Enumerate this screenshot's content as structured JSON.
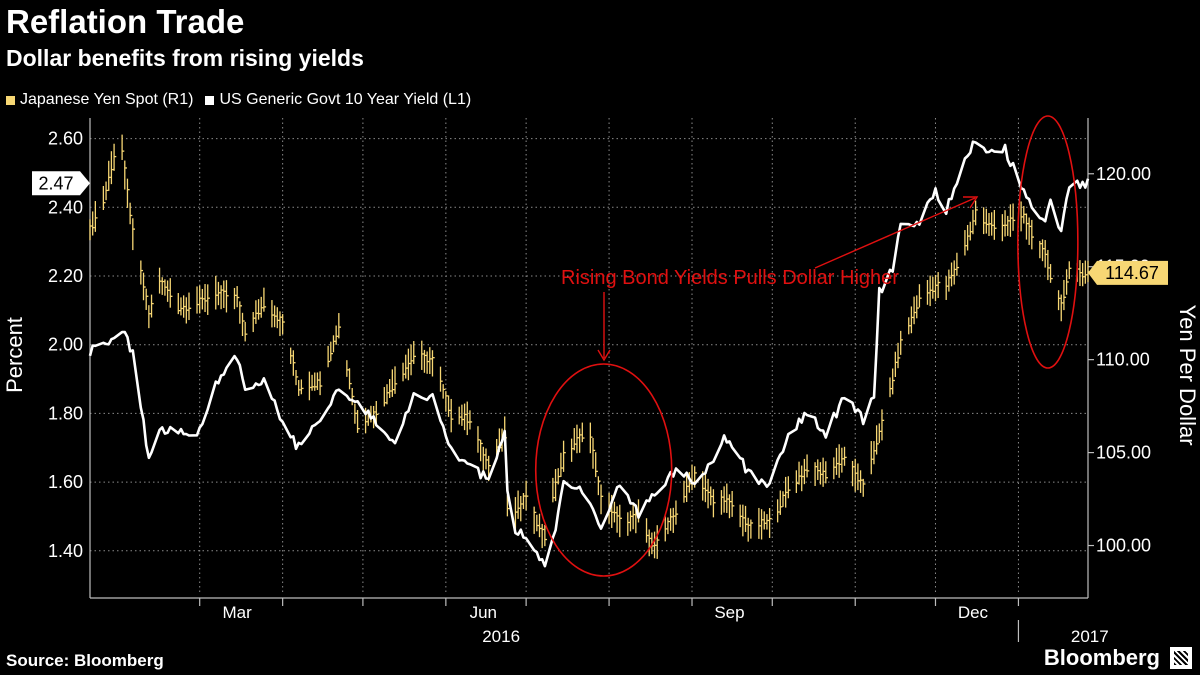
{
  "header": {
    "title": "Reflation Trade",
    "subtitle": "Dollar benefits from rising yields"
  },
  "legend": {
    "items": [
      {
        "label": "Japanese Yen Spot  (R1)",
        "color": "#f7d774"
      },
      {
        "label": "US Generic Govt 10 Year Yield  (L1)",
        "color": "#ffffff"
      }
    ]
  },
  "footer": {
    "source": "Source: Bloomberg",
    "brand": "Bloomberg"
  },
  "chart_data": {
    "type": "line",
    "title": "Reflation Trade",
    "subtitle": "Dollar benefits from rising yields",
    "x_range": [
      "2016-01-20",
      "2017-01-27"
    ],
    "x_ticks": [
      {
        "label": "Mar",
        "date": "2016-03-15"
      },
      {
        "label": "Jun",
        "date": "2016-06-15"
      },
      {
        "label": "Sep",
        "date": "2016-09-15"
      },
      {
        "label": "Dec",
        "date": "2016-12-15"
      }
    ],
    "x_boundaries": [
      "2016-03-01",
      "2016-04-01",
      "2016-05-01",
      "2016-06-01",
      "2016-07-01",
      "2016-08-01",
      "2016-09-01",
      "2016-10-01",
      "2016-11-01",
      "2016-12-01",
      "2017-01-01"
    ],
    "year_labels": [
      {
        "label": "2016",
        "date": "2016-07-01"
      },
      {
        "label": "2017",
        "date": "2017-01-15"
      }
    ],
    "y_left": {
      "label": "Percent",
      "range": [
        1.28,
        2.66
      ],
      "ticks": [
        1.4,
        1.6,
        1.8,
        2.0,
        2.2,
        2.4,
        2.6
      ],
      "tick_labels": [
        "1.40",
        "1.60",
        "1.80",
        "2.00",
        "2.20",
        "2.40",
        "2.60"
      ]
    },
    "y_right": {
      "label": "Yen Per Dollar",
      "range": [
        97.5,
        123.0
      ],
      "ticks": [
        100,
        105,
        110,
        115,
        120
      ],
      "tick_labels": [
        "100.00",
        "105.00",
        "110.00",
        "115.00",
        "120.00"
      ]
    },
    "grid": true,
    "series": [
      {
        "name": "US Generic Govt 10 Year Yield (L1)",
        "axis": "left",
        "color": "#ffffff",
        "style": "line",
        "last_value_label": "2.47",
        "points": [
          [
            "2016-01-20",
            1.98
          ],
          [
            "2016-01-27",
            2.0
          ],
          [
            "2016-02-01",
            2.05
          ],
          [
            "2016-02-05",
            1.97
          ],
          [
            "2016-02-11",
            1.67
          ],
          [
            "2016-02-15",
            1.75
          ],
          [
            "2016-02-22",
            1.75
          ],
          [
            "2016-02-29",
            1.73
          ],
          [
            "2016-03-07",
            1.88
          ],
          [
            "2016-03-15",
            1.97
          ],
          [
            "2016-03-18",
            1.87
          ],
          [
            "2016-03-25",
            1.9
          ],
          [
            "2016-04-01",
            1.77
          ],
          [
            "2016-04-07",
            1.7
          ],
          [
            "2016-04-15",
            1.78
          ],
          [
            "2016-04-22",
            1.88
          ],
          [
            "2016-04-29",
            1.83
          ],
          [
            "2016-05-06",
            1.78
          ],
          [
            "2016-05-13",
            1.7
          ],
          [
            "2016-05-20",
            1.85
          ],
          [
            "2016-05-27",
            1.85
          ],
          [
            "2016-06-03",
            1.7
          ],
          [
            "2016-06-10",
            1.64
          ],
          [
            "2016-06-17",
            1.61
          ],
          [
            "2016-06-23",
            1.74
          ],
          [
            "2016-06-24",
            1.56
          ],
          [
            "2016-06-27",
            1.46
          ],
          [
            "2016-07-01",
            1.44
          ],
          [
            "2016-07-06",
            1.37
          ],
          [
            "2016-07-08",
            1.36
          ],
          [
            "2016-07-11",
            1.43
          ],
          [
            "2016-07-15",
            1.59
          ],
          [
            "2016-07-22",
            1.57
          ],
          [
            "2016-07-29",
            1.46
          ],
          [
            "2016-08-05",
            1.59
          ],
          [
            "2016-08-12",
            1.51
          ],
          [
            "2016-08-19",
            1.58
          ],
          [
            "2016-08-26",
            1.63
          ],
          [
            "2016-09-02",
            1.6
          ],
          [
            "2016-09-09",
            1.67
          ],
          [
            "2016-09-13",
            1.73
          ],
          [
            "2016-09-16",
            1.7
          ],
          [
            "2016-09-23",
            1.62
          ],
          [
            "2016-09-30",
            1.59
          ],
          [
            "2016-10-07",
            1.73
          ],
          [
            "2016-10-14",
            1.8
          ],
          [
            "2016-10-21",
            1.74
          ],
          [
            "2016-10-28",
            1.85
          ],
          [
            "2016-11-04",
            1.78
          ],
          [
            "2016-11-08",
            1.86
          ],
          [
            "2016-11-10",
            2.15
          ],
          [
            "2016-11-15",
            2.22
          ],
          [
            "2016-11-18",
            2.35
          ],
          [
            "2016-11-25",
            2.36
          ],
          [
            "2016-12-01",
            2.45
          ],
          [
            "2016-12-05",
            2.39
          ],
          [
            "2016-12-09",
            2.47
          ],
          [
            "2016-12-14",
            2.57
          ],
          [
            "2016-12-16",
            2.6
          ],
          [
            "2016-12-20",
            2.55
          ],
          [
            "2016-12-27",
            2.57
          ],
          [
            "2017-01-03",
            2.45
          ],
          [
            "2017-01-06",
            2.41
          ],
          [
            "2017-01-11",
            2.36
          ],
          [
            "2017-01-13",
            2.41
          ],
          [
            "2017-01-17",
            2.33
          ],
          [
            "2017-01-20",
            2.47
          ],
          [
            "2017-01-27",
            2.47
          ]
        ]
      },
      {
        "name": "Japanese Yen Spot (R1)",
        "axis": "right",
        "color": "#f7d774",
        "style": "hlc-bars",
        "last_value_label": "114.67",
        "points": [
          [
            "2016-01-20",
            117.0
          ],
          [
            "2016-01-25",
            118.5
          ],
          [
            "2016-01-29",
            121.0
          ],
          [
            "2016-02-01",
            121.2
          ],
          [
            "2016-02-05",
            116.8
          ],
          [
            "2016-02-11",
            112.5
          ],
          [
            "2016-02-15",
            114.3
          ],
          [
            "2016-02-22",
            112.8
          ],
          [
            "2016-02-29",
            113.0
          ],
          [
            "2016-03-07",
            113.6
          ],
          [
            "2016-03-15",
            113.3
          ],
          [
            "2016-03-18",
            111.5
          ],
          [
            "2016-03-25",
            113.0
          ],
          [
            "2016-04-01",
            112.0
          ],
          [
            "2016-04-07",
            108.5
          ],
          [
            "2016-04-15",
            108.8
          ],
          [
            "2016-04-22",
            111.8
          ],
          [
            "2016-04-29",
            106.5
          ],
          [
            "2016-05-06",
            107.2
          ],
          [
            "2016-05-13",
            108.8
          ],
          [
            "2016-05-20",
            110.2
          ],
          [
            "2016-05-27",
            110.0
          ],
          [
            "2016-06-03",
            107.0
          ],
          [
            "2016-06-10",
            106.8
          ],
          [
            "2016-06-17",
            104.2
          ],
          [
            "2016-06-23",
            106.0
          ],
          [
            "2016-06-24",
            102.2
          ],
          [
            "2016-06-27",
            101.8
          ],
          [
            "2016-07-01",
            102.7
          ],
          [
            "2016-07-06",
            100.8
          ],
          [
            "2016-07-08",
            100.5
          ],
          [
            "2016-07-11",
            102.8
          ],
          [
            "2016-07-15",
            104.8
          ],
          [
            "2016-07-22",
            106.0
          ],
          [
            "2016-07-25",
            105.8
          ],
          [
            "2016-07-29",
            102.5
          ],
          [
            "2016-08-05",
            101.3
          ],
          [
            "2016-08-12",
            101.6
          ],
          [
            "2016-08-16",
            100.2
          ],
          [
            "2016-08-19",
            100.2
          ],
          [
            "2016-08-26",
            101.8
          ],
          [
            "2016-09-02",
            103.9
          ],
          [
            "2016-09-09",
            102.3
          ],
          [
            "2016-09-13",
            102.6
          ],
          [
            "2016-09-16",
            102.0
          ],
          [
            "2016-09-23",
            101.0
          ],
          [
            "2016-09-30",
            101.3
          ],
          [
            "2016-10-07",
            103.0
          ],
          [
            "2016-10-14",
            104.2
          ],
          [
            "2016-10-21",
            103.8
          ],
          [
            "2016-10-28",
            104.8
          ],
          [
            "2016-11-04",
            103.1
          ],
          [
            "2016-11-08",
            105.2
          ],
          [
            "2016-11-10",
            106.0
          ],
          [
            "2016-11-15",
            109.0
          ],
          [
            "2016-11-18",
            110.9
          ],
          [
            "2016-11-25",
            113.2
          ],
          [
            "2016-12-01",
            114.0
          ],
          [
            "2016-12-05",
            114.0
          ],
          [
            "2016-12-09",
            115.0
          ],
          [
            "2016-12-14",
            117.0
          ],
          [
            "2016-12-16",
            118.0
          ],
          [
            "2016-12-20",
            117.2
          ],
          [
            "2016-12-27",
            117.3
          ],
          [
            "2017-01-03",
            117.7
          ],
          [
            "2017-01-06",
            116.8
          ],
          [
            "2017-01-11",
            115.5
          ],
          [
            "2017-01-13",
            114.5
          ],
          [
            "2017-01-17",
            113.0
          ],
          [
            "2017-01-20",
            114.7
          ],
          [
            "2017-01-27",
            114.67
          ]
        ]
      }
    ],
    "annotations": [
      {
        "text": "Rising Bond Yields Pulls Dollar Higher",
        "color": "#e01010"
      }
    ]
  }
}
